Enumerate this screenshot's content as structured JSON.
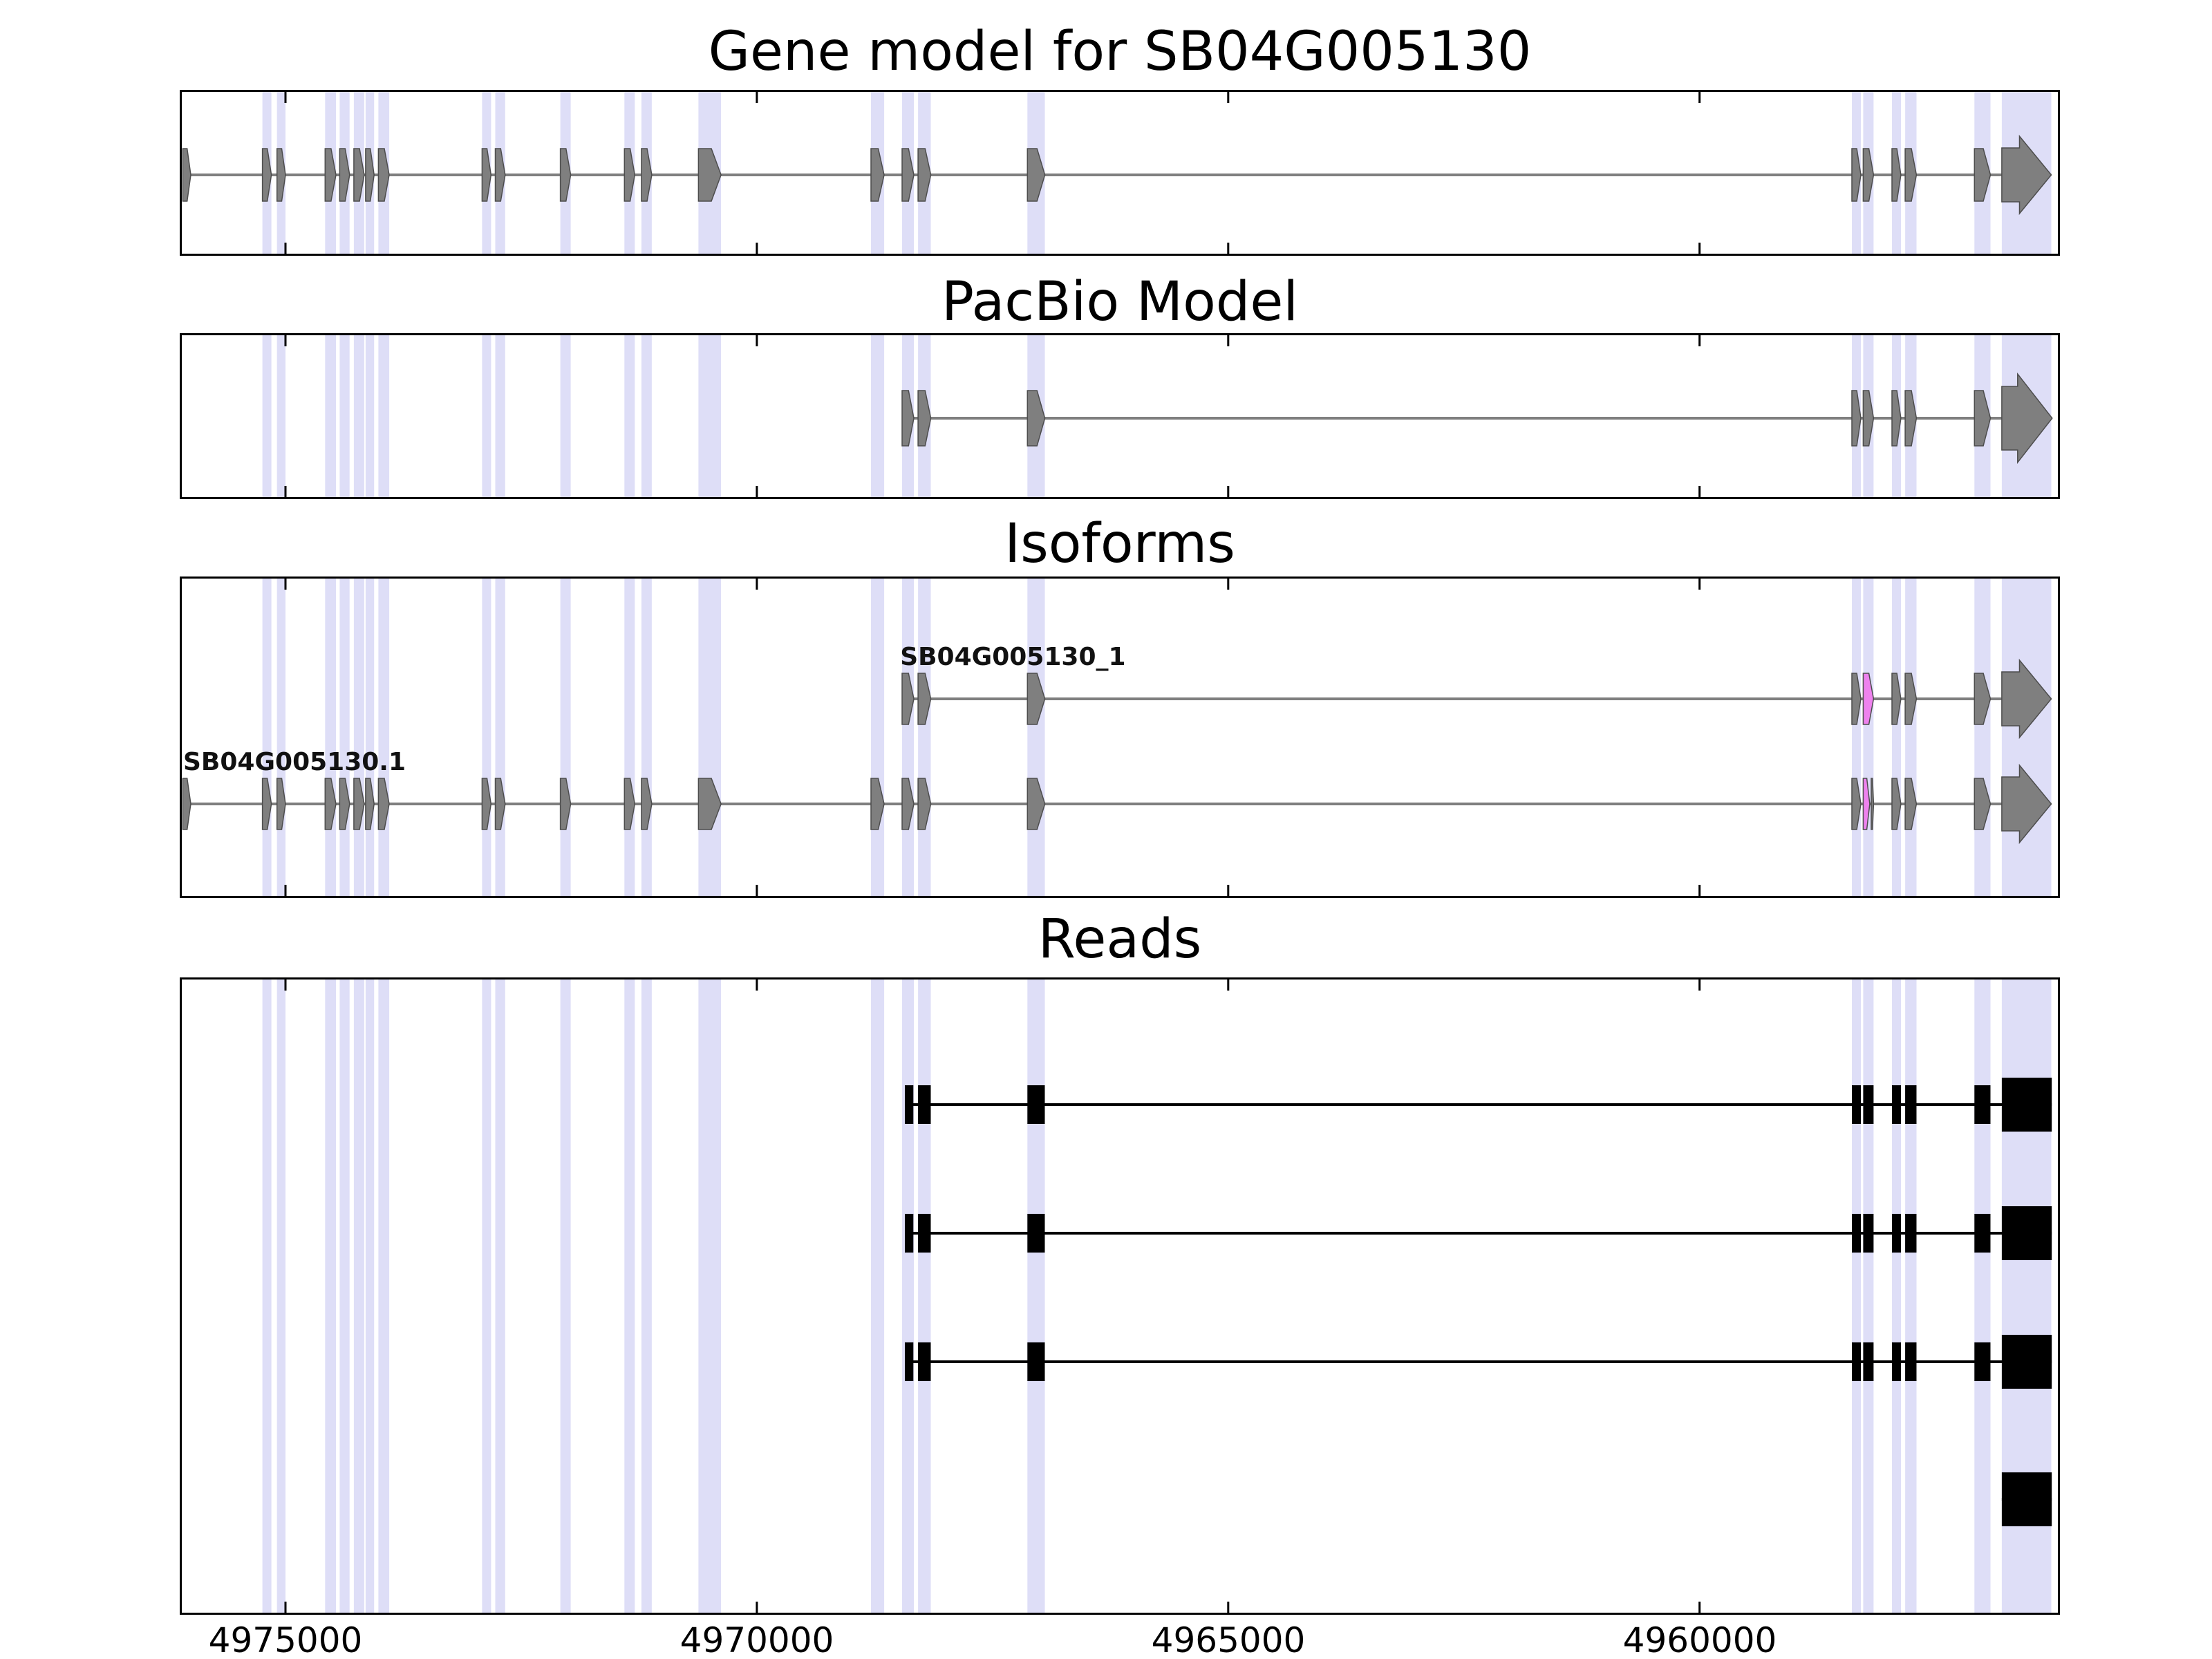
{
  "chart_data": {
    "type": "genomic-track-plot",
    "x_axis": {
      "unit": "genomic position (bp)",
      "orientation": "reversed",
      "left_bp": 4976100,
      "right_bp": 4956200,
      "ticks": [
        {
          "bp": 4975000,
          "label": "4975000"
        },
        {
          "bp": 4970000,
          "label": "4970000"
        },
        {
          "bp": 4965000,
          "label": "4965000"
        },
        {
          "bp": 4960000,
          "label": "4960000"
        }
      ]
    },
    "colors": {
      "feature": "#7f7f7f",
      "feature_edge": "#4d4d4d",
      "read": "#000000",
      "highlight": "#ee82ee",
      "stripe": "rgba(145,145,230,0.30)",
      "axis": "#000000"
    },
    "stripes_bp": [
      [
        4975245,
        4975150
      ],
      [
        4975090,
        4975000
      ],
      [
        4974580,
        4974465
      ],
      [
        4974425,
        4974320
      ],
      [
        4974275,
        4974165
      ],
      [
        4974150,
        4974060
      ],
      [
        4974015,
        4973900
      ],
      [
        4972915,
        4972820
      ],
      [
        4972775,
        4972670
      ],
      [
        4972085,
        4971975
      ],
      [
        4971405,
        4971295
      ],
      [
        4971225,
        4971115
      ],
      [
        4970620,
        4970380
      ],
      [
        4968790,
        4968650
      ],
      [
        4968460,
        4968335
      ],
      [
        4968290,
        4968155
      ],
      [
        4967130,
        4966945
      ],
      [
        4958385,
        4958290
      ],
      [
        4958265,
        4958155
      ],
      [
        4957960,
        4957865
      ],
      [
        4957820,
        4957700
      ],
      [
        4957085,
        4956915
      ],
      [
        4956795,
        4956270
      ]
    ],
    "panels": [
      {
        "name": "gene_model",
        "title": "Gene model for SB04G005130",
        "tracks": [
          {
            "style": "gene",
            "label": null,
            "label_bp": null,
            "span": [
              4976090,
              4956270
            ],
            "exons": [
              [
                4976090,
                4976005
              ],
              [
                4975245,
                4975150
              ],
              [
                4975090,
                4975000
              ],
              [
                4974580,
                4974465
              ],
              [
                4974425,
                4974320
              ],
              [
                4974275,
                4974165
              ],
              [
                4974150,
                4974060
              ],
              [
                4974015,
                4973900
              ],
              [
                4972915,
                4972820
              ],
              [
                4972775,
                4972670
              ],
              [
                4972085,
                4971975
              ],
              [
                4971405,
                4971295
              ],
              [
                4971225,
                4971115
              ],
              [
                4970620,
                4970380
              ],
              [
                4968790,
                4968650
              ],
              [
                4968460,
                4968335
              ],
              [
                4968290,
                4968155
              ],
              [
                4967130,
                4966945
              ],
              [
                4958385,
                4958290
              ],
              [
                4958265,
                4958155
              ],
              [
                4957960,
                4957865
              ],
              [
                4957820,
                4957700
              ],
              [
                4957085,
                4956915
              ]
            ],
            "magenta_exons": [],
            "terminal": [
              4956795,
              4956270
            ]
          }
        ]
      },
      {
        "name": "pacbio_model",
        "title": "PacBio Model",
        "tracks": [
          {
            "style": "gene",
            "label": null,
            "label_bp": null,
            "span": [
              4968460,
              4956260
            ],
            "exons": [
              [
                4968460,
                4968335
              ],
              [
                4968290,
                4968155
              ],
              [
                4967130,
                4966945
              ],
              [
                4958385,
                4958290
              ],
              [
                4958265,
                4958155
              ],
              [
                4957960,
                4957865
              ],
              [
                4957820,
                4957700
              ],
              [
                4957085,
                4956915
              ]
            ],
            "magenta_exons": [],
            "terminal": [
              4956795,
              4956260
            ]
          }
        ]
      },
      {
        "name": "isoforms",
        "title": "Isoforms",
        "tracks": [
          {
            "style": "gene",
            "label": "SB04G005130_1",
            "label_bp": 4968480,
            "span": [
              4968460,
              4956270
            ],
            "exons": [
              [
                4968460,
                4968335
              ],
              [
                4968290,
                4968155
              ],
              [
                4967130,
                4966945
              ],
              [
                4958385,
                4958290
              ],
              [
                4957960,
                4957865
              ],
              [
                4957820,
                4957700
              ],
              [
                4957085,
                4956915
              ]
            ],
            "magenta_exons": [
              [
                4958265,
                4958155
              ]
            ],
            "terminal": [
              4956795,
              4956270
            ]
          },
          {
            "style": "gene",
            "label": "SB04G005130.1",
            "label_bp": 4976085,
            "span": [
              4976090,
              4956270
            ],
            "exons": [
              [
                4976090,
                4976005
              ],
              [
                4975245,
                4975150
              ],
              [
                4975090,
                4975000
              ],
              [
                4974580,
                4974465
              ],
              [
                4974425,
                4974320
              ],
              [
                4974275,
                4974165
              ],
              [
                4974150,
                4974060
              ],
              [
                4974015,
                4973900
              ],
              [
                4972915,
                4972820
              ],
              [
                4972775,
                4972670
              ],
              [
                4972085,
                4971975
              ],
              [
                4971405,
                4971295
              ],
              [
                4971225,
                4971115
              ],
              [
                4970620,
                4970380
              ],
              [
                4968790,
                4968650
              ],
              [
                4968460,
                4968335
              ],
              [
                4968290,
                4968155
              ],
              [
                4967130,
                4966945
              ],
              [
                4958385,
                4958290
              ],
              [
                4958180,
                4958155
              ],
              [
                4957960,
                4957865
              ],
              [
                4957820,
                4957700
              ],
              [
                4957085,
                4956915
              ]
            ],
            "magenta_exons": [
              [
                4958265,
                4958195
              ]
            ],
            "terminal": [
              4956795,
              4956270
            ]
          }
        ]
      },
      {
        "name": "reads",
        "title": "Reads",
        "tracks": [
          {
            "style": "read",
            "label": null,
            "label_bp": null,
            "span": [
              4968430,
              4956265
            ],
            "exons": [
              [
                4968430,
                4968340
              ],
              [
                4968290,
                4968155
              ],
              [
                4967130,
                4966945
              ],
              [
                4958385,
                4958290
              ],
              [
                4958265,
                4958155
              ],
              [
                4957960,
                4957865
              ],
              [
                4957820,
                4957700
              ],
              [
                4957085,
                4956915
              ]
            ],
            "magenta_exons": [],
            "terminal": [
              4956795,
              4956265
            ]
          },
          {
            "style": "read",
            "label": null,
            "label_bp": null,
            "span": [
              4968430,
              4956265
            ],
            "exons": [
              [
                4968430,
                4968340
              ],
              [
                4968290,
                4968155
              ],
              [
                4967130,
                4966945
              ],
              [
                4958385,
                4958290
              ],
              [
                4958265,
                4958155
              ],
              [
                4957960,
                4957865
              ],
              [
                4957820,
                4957700
              ],
              [
                4957085,
                4956915
              ]
            ],
            "magenta_exons": [],
            "terminal": [
              4956795,
              4956265
            ]
          },
          {
            "style": "read",
            "label": null,
            "label_bp": null,
            "span": [
              4968430,
              4956265
            ],
            "exons": [
              [
                4968430,
                4968340
              ],
              [
                4968290,
                4968155
              ],
              [
                4967130,
                4966945
              ],
              [
                4958385,
                4958290
              ],
              [
                4958265,
                4958155
              ],
              [
                4957960,
                4957865
              ],
              [
                4957820,
                4957700
              ],
              [
                4957085,
                4956915
              ]
            ],
            "magenta_exons": [],
            "terminal": [
              4956795,
              4956265
            ]
          },
          {
            "style": "read",
            "label": null,
            "label_bp": null,
            "span": [
              4956795,
              4956265
            ],
            "exons": [],
            "magenta_exons": [],
            "terminal": [
              4956795,
              4956265
            ]
          }
        ]
      }
    ]
  }
}
